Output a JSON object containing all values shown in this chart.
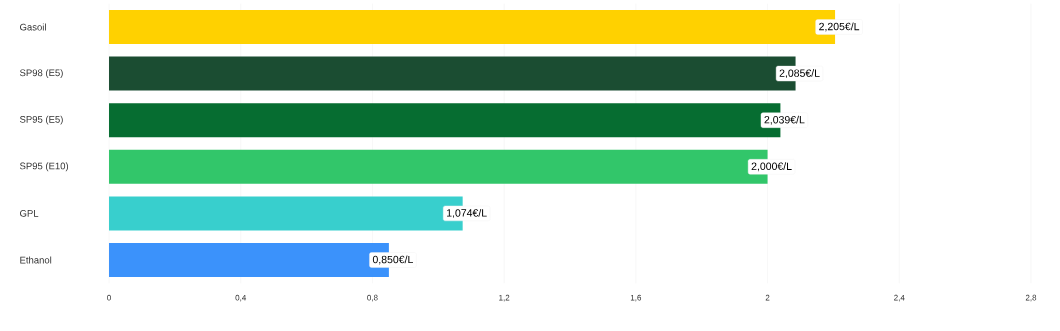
{
  "chart_data": {
    "type": "bar",
    "orientation": "horizontal",
    "categories": [
      "Gasoil",
      "SP98 (E5)",
      "SP95 (E5)",
      "SP95 (E10)",
      "GPL",
      "Ethanol"
    ],
    "values": [
      2.205,
      2.085,
      2.039,
      2.0,
      1.074,
      0.85
    ],
    "value_labels": [
      "2,205€/L",
      "2,085€/L",
      "2,039€/L",
      "2,000€/L",
      "1,074€/L",
      "0,850€/L"
    ],
    "colors": [
      "#ffd100",
      "#1b4d32",
      "#066d31",
      "#32c66a",
      "#38cfcd",
      "#3b92fb"
    ],
    "xlim": [
      0,
      2.8
    ],
    "xticks": [
      0,
      {
        "value": 0.4,
        "label": "0,4"
      },
      {
        "value": 0.8,
        "label": "0,8"
      },
      {
        "value": 1.2,
        "label": "1,2"
      },
      {
        "value": 1.6,
        "label": "1,6"
      },
      2,
      {
        "value": 2.4,
        "label": "2,4"
      },
      {
        "value": 2.8,
        "label": "2,8"
      }
    ],
    "grid": "x"
  }
}
